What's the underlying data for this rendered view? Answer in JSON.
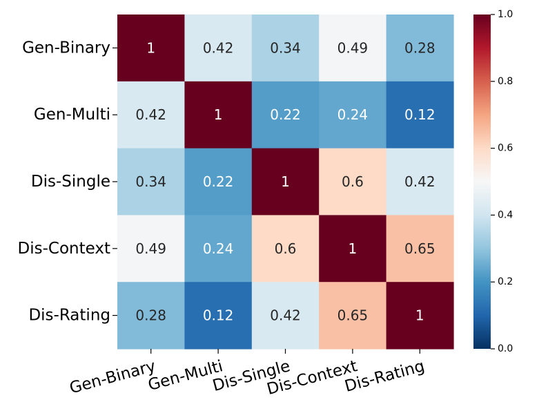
{
  "chart_data": {
    "type": "heatmap",
    "title": "",
    "xlabel": "",
    "ylabel": "",
    "rows": [
      "Gen-Binary",
      "Gen-Multi",
      "Dis-Single",
      "Dis-Context",
      "Dis-Rating"
    ],
    "columns": [
      "Gen-Binary",
      "Gen-Multi",
      "Dis-Single",
      "Dis-Context",
      "Dis-Rating"
    ],
    "values": [
      [
        1,
        0.42,
        0.34,
        0.49,
        0.28
      ],
      [
        0.42,
        1,
        0.22,
        0.24,
        0.12
      ],
      [
        0.34,
        0.22,
        1,
        0.6,
        0.42
      ],
      [
        0.49,
        0.24,
        0.6,
        1,
        0.65
      ],
      [
        0.28,
        0.12,
        0.42,
        0.65,
        1
      ]
    ],
    "value_labels": [
      [
        "1",
        "0.42",
        "0.34",
        "0.49",
        "0.28"
      ],
      [
        "0.42",
        "1",
        "0.22",
        "0.24",
        "0.12"
      ],
      [
        "0.34",
        "0.22",
        "1",
        "0.6",
        "0.42"
      ],
      [
        "0.49",
        "0.24",
        "0.6",
        "1",
        "0.65"
      ],
      [
        "0.28",
        "0.12",
        "0.42",
        "0.65",
        "1"
      ]
    ],
    "colorbar": {
      "min": 0.0,
      "max": 1.0,
      "ticks": [
        0.0,
        0.2,
        0.4,
        0.6,
        0.8,
        1.0
      ],
      "tick_labels": [
        "0.0",
        "0.2",
        "0.4",
        "0.6",
        "0.8",
        "1.0"
      ],
      "colormap": "RdBu_r",
      "stops": [
        "#053061",
        "#2166ac",
        "#4393c3",
        "#92c5de",
        "#d1e5f0",
        "#f7f7f7",
        "#fddbc7",
        "#f4a582",
        "#d6604d",
        "#b2182b",
        "#67001f"
      ]
    },
    "text_color_dark": "#262626",
    "text_color_light": "#ffffff"
  }
}
